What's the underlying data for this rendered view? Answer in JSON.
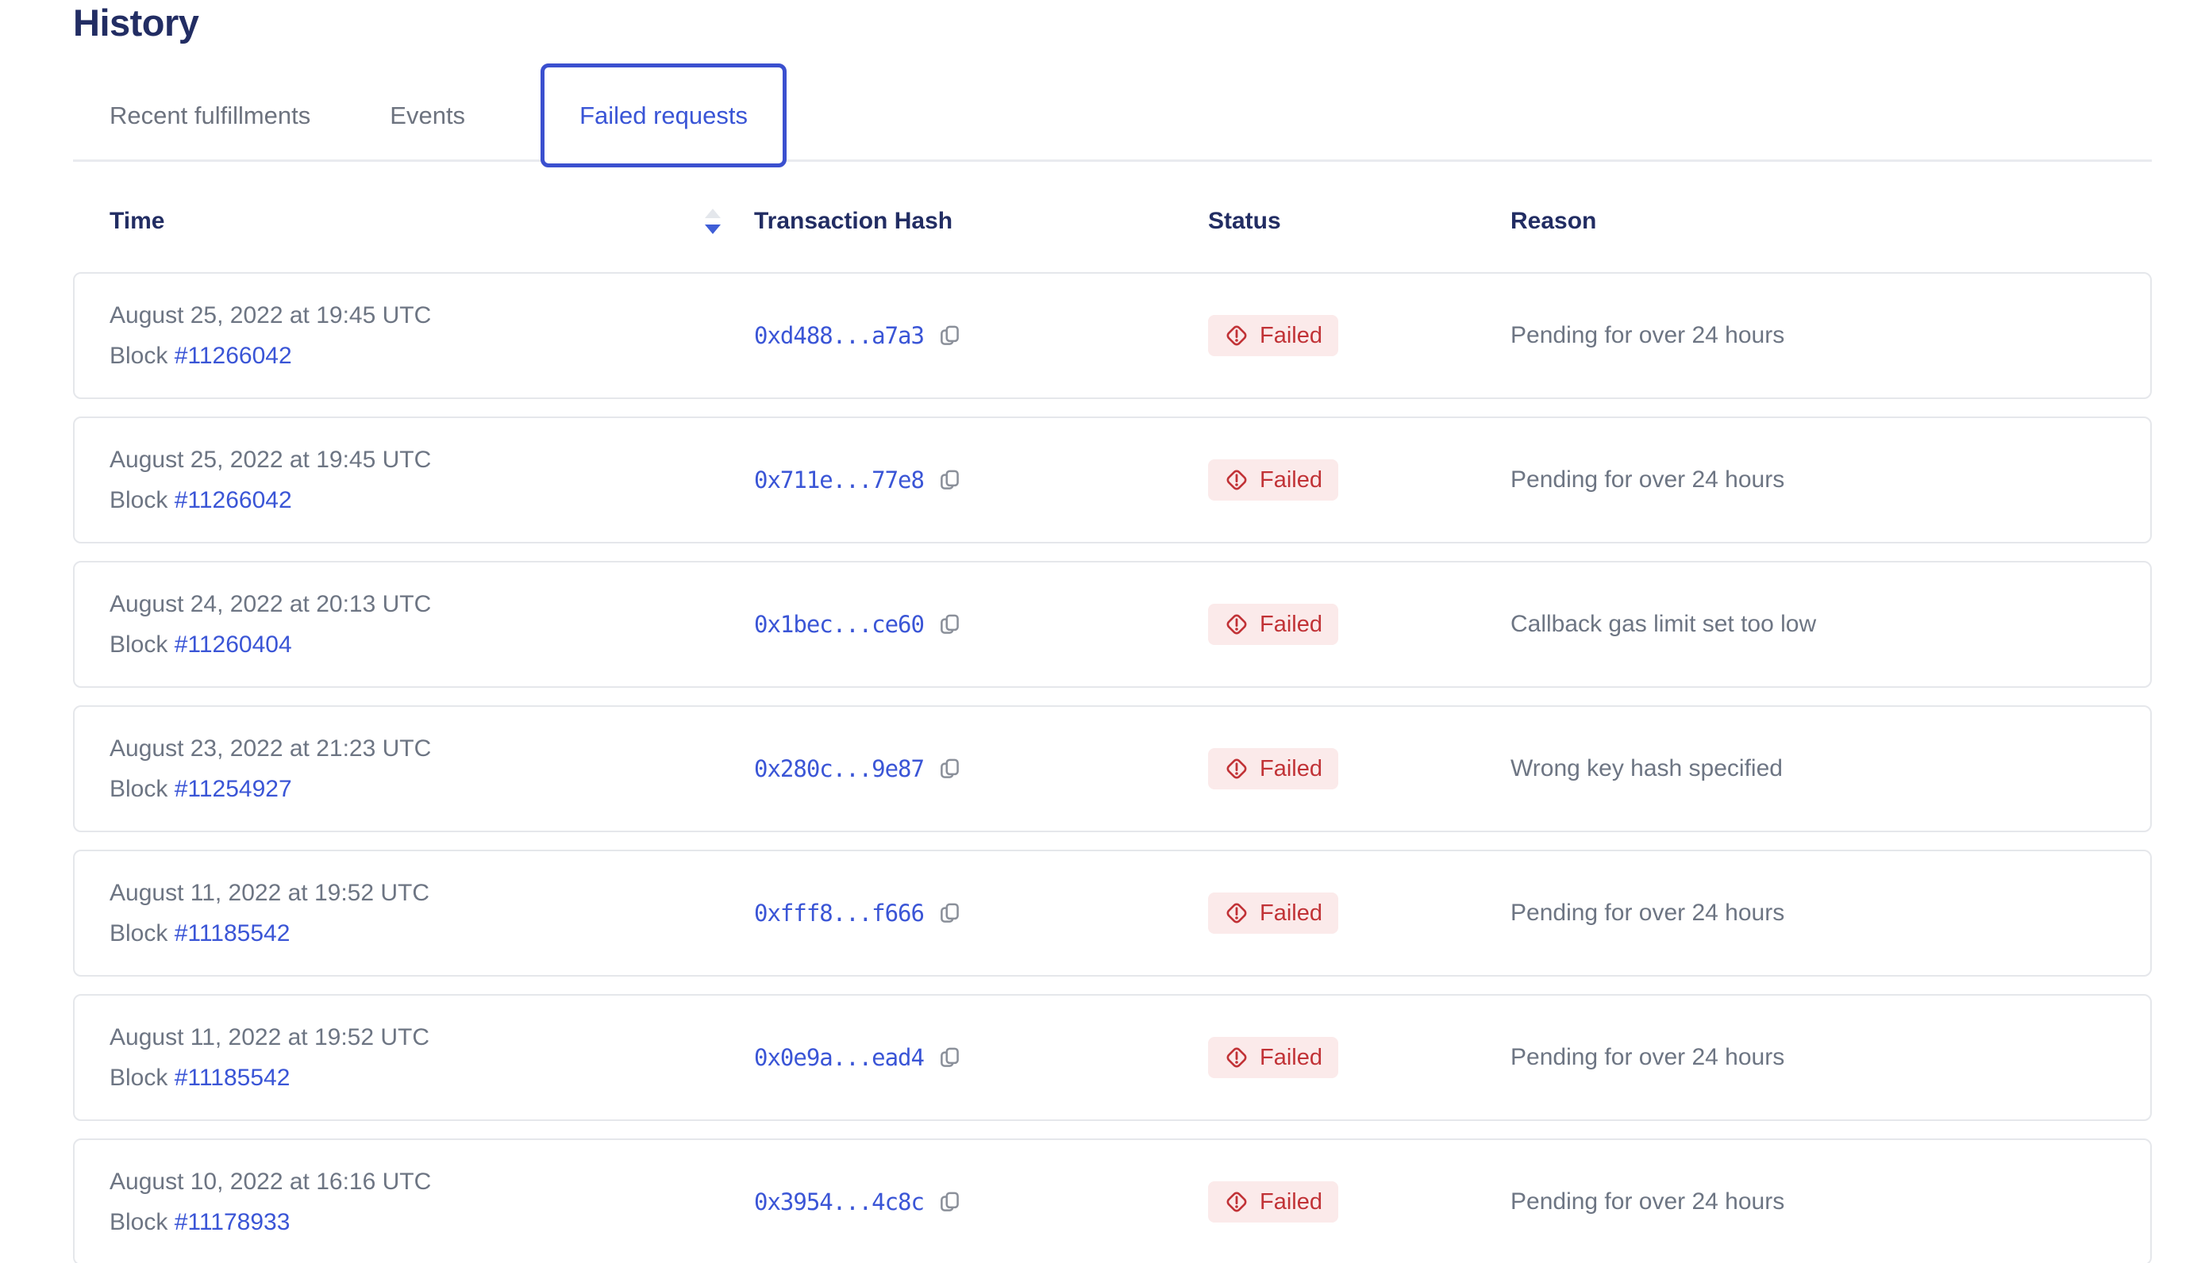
{
  "page": {
    "title": "History"
  },
  "tabs": [
    {
      "label": "Recent fulfillments",
      "active": false
    },
    {
      "label": "Events",
      "active": false
    },
    {
      "label": "Failed requests",
      "active": true
    }
  ],
  "table": {
    "columns": {
      "time": "Time",
      "hash": "Transaction Hash",
      "status": "Status",
      "reason": "Reason"
    },
    "sort": {
      "column": "Time",
      "direction": "descending"
    },
    "rows": [
      {
        "date": "August 25, 2022 at 19:45 UTC",
        "block_label": "Block",
        "block": "#11266042",
        "hash": "0xd488...a7a3",
        "status": "Failed",
        "reason": "Pending for over 24 hours"
      },
      {
        "date": "August 25, 2022 at 19:45 UTC",
        "block_label": "Block",
        "block": "#11266042",
        "hash": "0x711e...77e8",
        "status": "Failed",
        "reason": "Pending for over 24 hours"
      },
      {
        "date": "August 24, 2022 at 20:13 UTC",
        "block_label": "Block",
        "block": "#11260404",
        "hash": "0x1bec...ce60",
        "status": "Failed",
        "reason": "Callback gas limit set too low"
      },
      {
        "date": "August 23, 2022 at 21:23 UTC",
        "block_label": "Block",
        "block": "#11254927",
        "hash": "0x280c...9e87",
        "status": "Failed",
        "reason": "Wrong key hash specified"
      },
      {
        "date": "August 11, 2022 at 19:52 UTC",
        "block_label": "Block",
        "block": "#11185542",
        "hash": "0xfff8...f666",
        "status": "Failed",
        "reason": "Pending for over 24 hours"
      },
      {
        "date": "August 11, 2022 at 19:52 UTC",
        "block_label": "Block",
        "block": "#11185542",
        "hash": "0x0e9a...ead4",
        "status": "Failed",
        "reason": "Pending for over 24 hours"
      },
      {
        "date": "August 10, 2022 at 16:16 UTC",
        "block_label": "Block",
        "block": "#11178933",
        "hash": "0x3954...4c8c",
        "status": "Failed",
        "reason": "Pending for over 24 hours"
      }
    ]
  },
  "icons": {
    "sort": "sort-descending-icon",
    "copy": "copy-icon",
    "status": "alert-diamond-icon"
  },
  "colors": {
    "title_navy": "#222d63",
    "link_blue": "#3a55d6",
    "tab_border_blue": "#3b50cf",
    "text_gray": "#6d7583",
    "failed_red": "#c13236",
    "failed_bg": "#fbeaea",
    "card_border": "#e5e7eb",
    "divider": "#e9ebef",
    "copy_icon_gray": "#8b909a",
    "sort_inactive": "#e4e7ec"
  }
}
